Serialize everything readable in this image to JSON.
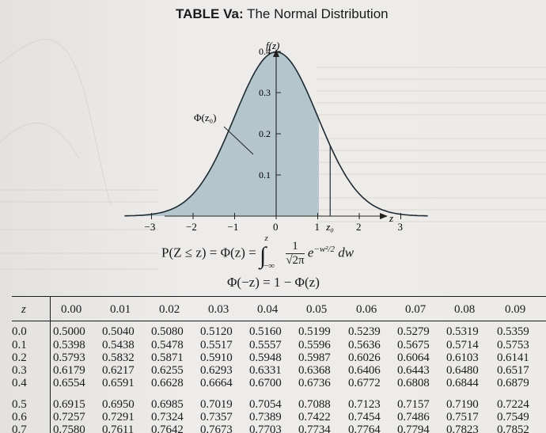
{
  "title": {
    "label": "TABLE Va:",
    "caption": "The Normal Distribution"
  },
  "figure": {
    "y_label": "f(z)",
    "x_label": "z",
    "phi_label": "Φ(z₀)",
    "x_ticks": [
      "−3",
      "−2",
      "−1",
      "0",
      "1",
      "2",
      "3"
    ],
    "x_z0_label": "z₀",
    "y_ticks": [
      "0.1",
      "0.2",
      "0.3",
      "0.4"
    ],
    "z0_value": 1.3
  },
  "formula": {
    "line1_left": "P(Z ≤ z) = Φ(z) =",
    "upper": "z",
    "lower": "−∞",
    "numerator": "1",
    "denominator": "√2π",
    "exp_base": "e",
    "exponent": "−w²/2",
    "dw": "dw",
    "line2": "Φ(−z) = 1 − Φ(z)"
  },
  "table": {
    "header": [
      "z",
      "0.00",
      "0.01",
      "0.02",
      "0.03",
      "0.04",
      "0.05",
      "0.06",
      "0.07",
      "0.08",
      "0.09"
    ],
    "rows": [
      {
        "z": "0.0",
        "values": [
          "0.5000",
          "0.5040",
          "0.5080",
          "0.5120",
          "0.5160",
          "0.5199",
          "0.5239",
          "0.5279",
          "0.5319",
          "0.5359"
        ]
      },
      {
        "z": "0.1",
        "values": [
          "0.5398",
          "0.5438",
          "0.5478",
          "0.5517",
          "0.5557",
          "0.5596",
          "0.5636",
          "0.5675",
          "0.5714",
          "0.5753"
        ]
      },
      {
        "z": "0.2",
        "values": [
          "0.5793",
          "0.5832",
          "0.5871",
          "0.5910",
          "0.5948",
          "0.5987",
          "0.6026",
          "0.6064",
          "0.6103",
          "0.6141"
        ]
      },
      {
        "z": "0.3",
        "values": [
          "0.6179",
          "0.6217",
          "0.6255",
          "0.6293",
          "0.6331",
          "0.6368",
          "0.6406",
          "0.6443",
          "0.6480",
          "0.6517"
        ]
      },
      {
        "z": "0.4",
        "values": [
          "0.6554",
          "0.6591",
          "0.6628",
          "0.6664",
          "0.6700",
          "0.6736",
          "0.6772",
          "0.6808",
          "0.6844",
          "0.6879"
        ]
      },
      {
        "z": "0.5",
        "values": [
          "0.6915",
          "0.6950",
          "0.6985",
          "0.7019",
          "0.7054",
          "0.7088",
          "0.7123",
          "0.7157",
          "0.7190",
          "0.7224"
        ]
      },
      {
        "z": "0.6",
        "values": [
          "0.7257",
          "0.7291",
          "0.7324",
          "0.7357",
          "0.7389",
          "0.7422",
          "0.7454",
          "0.7486",
          "0.7517",
          "0.7549"
        ]
      },
      {
        "z": "0.7",
        "values": [
          "0.7580",
          "0.7611",
          "0.7642",
          "0.7673",
          "0.7703",
          "0.7734",
          "0.7764",
          "0.7794",
          "0.7823",
          "0.7852"
        ]
      }
    ]
  }
}
